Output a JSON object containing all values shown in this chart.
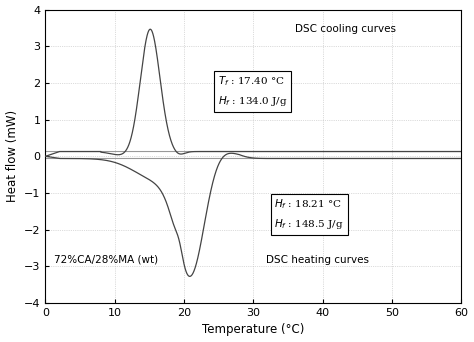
{
  "xlabel": "Temperature (°C)",
  "ylabel": "Heat flow (mW)",
  "xlim": [
    0,
    60
  ],
  "ylim": [
    -4,
    4
  ],
  "yticks": [
    -4,
    -3,
    -2,
    -1,
    0,
    1,
    2,
    3,
    4
  ],
  "xticks": [
    0,
    10,
    20,
    30,
    40,
    50,
    60
  ],
  "annotation_cooling": "DSC cooling curves",
  "annotation_heating": "DSC heating curves",
  "annotation_sample": "72%CA/28%MA (wt)",
  "line_color": "#444444",
  "flat_line1_y": 0.13,
  "flat_line2_y": -0.06,
  "background_color": "#ffffff",
  "grid_color": "#bbbbbb"
}
